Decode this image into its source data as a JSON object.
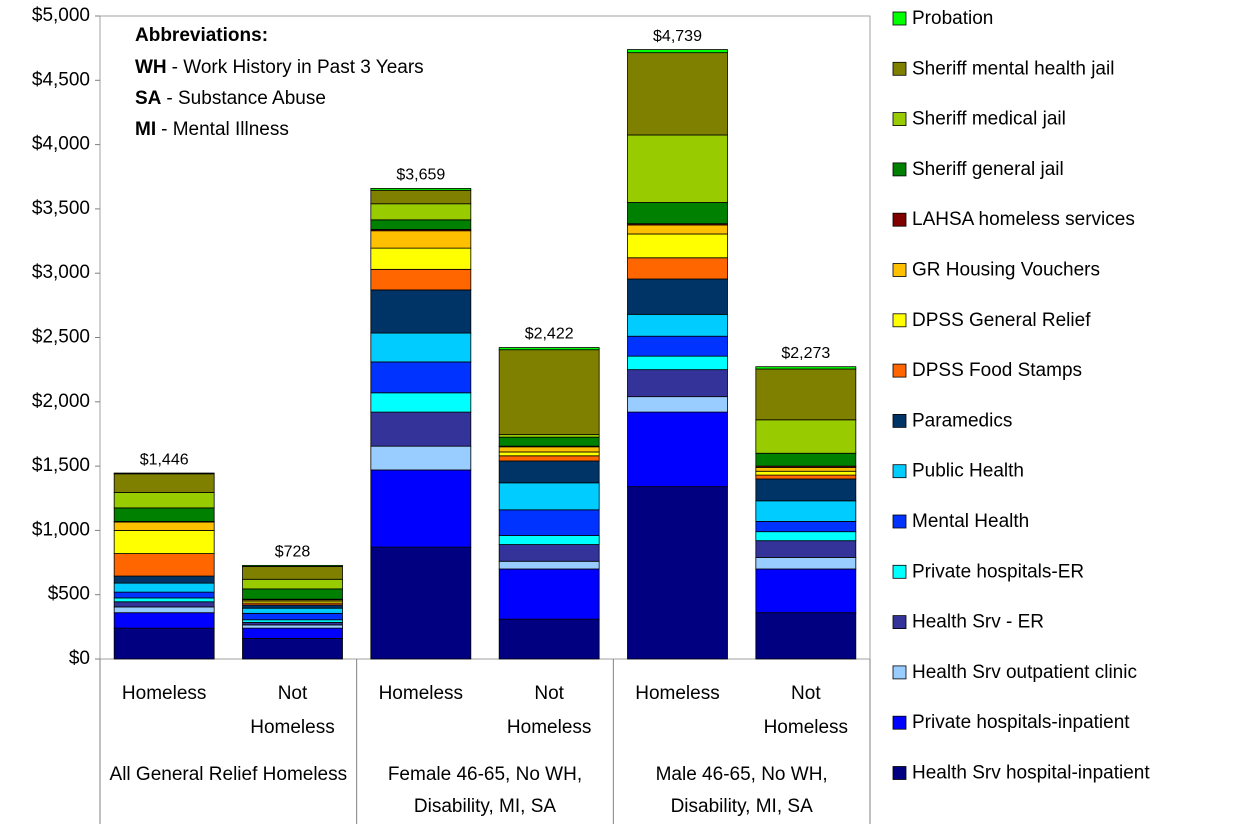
{
  "chart_data": {
    "type": "stacked_bar",
    "categories": [
      "Homeless",
      "Not Homeless",
      "Homeless",
      "Not Homeless",
      "Homeless",
      "Not Homeless"
    ],
    "groups": [
      "All General Relief Homeless",
      "Female 46-65, No WH, Disability, MI, SA",
      "Male 46-65, No WH, Disability, MI, SA"
    ],
    "series": [
      {
        "name": "Health Srv hospital-inpatient",
        "color": "#000080",
        "values": [
          240,
          160,
          870,
          310,
          1340,
          360
        ]
      },
      {
        "name": "Private hospitals-inpatient",
        "color": "#0000ff",
        "values": [
          120,
          80,
          600,
          390,
          580,
          340
        ]
      },
      {
        "name": "Health Srv outpatient clinic",
        "color": "#99ccff",
        "values": [
          45,
          25,
          185,
          60,
          120,
          90
        ]
      },
      {
        "name": "Health Srv - ER",
        "color": "#333399",
        "values": [
          40,
          20,
          265,
          130,
          210,
          130
        ]
      },
      {
        "name": "Private hospitals-ER",
        "color": "#00ffff",
        "values": [
          30,
          20,
          150,
          70,
          105,
          70
        ]
      },
      {
        "name": "Mental Health",
        "color": "#0033ff",
        "values": [
          45,
          50,
          240,
          200,
          155,
          80
        ]
      },
      {
        "name": "Public Health",
        "color": "#00ccff",
        "values": [
          70,
          40,
          225,
          210,
          170,
          160
        ]
      },
      {
        "name": "Paramedics",
        "color": "#003366",
        "values": [
          55,
          25,
          335,
          170,
          275,
          170
        ]
      },
      {
        "name": "DPSS Food Stamps",
        "color": "#ff6600",
        "values": [
          175,
          15,
          160,
          40,
          165,
          30
        ]
      },
      {
        "name": "DPSS General Relief",
        "color": "#ffff00",
        "values": [
          180,
          15,
          165,
          30,
          185,
          30
        ]
      },
      {
        "name": "GR Housing Vouchers",
        "color": "#ffc000",
        "values": [
          65,
          10,
          135,
          40,
          70,
          30
        ]
      },
      {
        "name": "LAHSA homeless services",
        "color": "#800000",
        "values": [
          5,
          5,
          10,
          5,
          10,
          10
        ]
      },
      {
        "name": "Sheriff general jail",
        "color": "#008000",
        "values": [
          105,
          80,
          75,
          70,
          165,
          100
        ]
      },
      {
        "name": "Sheriff medical jail",
        "color": "#99cc00",
        "values": [
          120,
          75,
          125,
          20,
          525,
          260
        ]
      },
      {
        "name": "Sheriff mental health jail",
        "color": "#808000",
        "values": [
          145,
          100,
          105,
          660,
          640,
          395
        ]
      },
      {
        "name": "Probation",
        "color": "#00ff00",
        "values": [
          6,
          8,
          14,
          17,
          24,
          18
        ]
      }
    ],
    "totals": [
      1446,
      728,
      3659,
      2422,
      4739,
      2273
    ],
    "total_labels": [
      "$1,446",
      "$728",
      "$3,659",
      "$2,422",
      "$4,739",
      "$2,273"
    ],
    "ylim": [
      0,
      5000
    ],
    "yticks": [
      {
        "value": 0,
        "label": "$0"
      },
      {
        "value": 500,
        "label": "$500"
      },
      {
        "value": 1000,
        "label": "$1,000"
      },
      {
        "value": 1500,
        "label": "$1,500"
      },
      {
        "value": 2000,
        "label": "$2,000"
      },
      {
        "value": 2500,
        "label": "$2,500"
      },
      {
        "value": 3000,
        "label": "$3,000"
      },
      {
        "value": 3500,
        "label": "$3,500"
      },
      {
        "value": 4000,
        "label": "$4,000"
      },
      {
        "value": 4500,
        "label": "$4,500"
      },
      {
        "value": 5000,
        "label": "$5,000"
      }
    ],
    "grid": false,
    "legend": "right",
    "annotation": {
      "title": "Abbreviations:",
      "items": [
        {
          "abbr": "WH",
          "text": "- Work History in Past 3 Years"
        },
        {
          "abbr": "SA",
          "text": "- Substance Abuse"
        },
        {
          "abbr": "MI",
          "text": "- Mental Illness"
        }
      ]
    }
  }
}
